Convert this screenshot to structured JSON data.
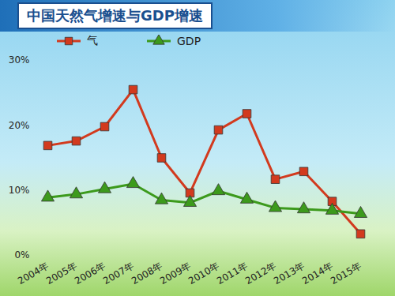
{
  "chart_data": {
    "type": "line",
    "title": "中国天然气增速与GDP增速",
    "categories": [
      "2004年",
      "2005年",
      "2006年",
      "2007年",
      "2008年",
      "2009年",
      "2010年",
      "2011年",
      "2012年",
      "2013年",
      "2014年",
      "2015年"
    ],
    "series": [
      {
        "name": "气",
        "color": "#d23a1e",
        "marker": "square",
        "values": [
          16.9,
          17.6,
          19.8,
          25.5,
          15,
          9.6,
          19.3,
          21.8,
          11.7,
          12.9,
          8.3,
          3.3
        ]
      },
      {
        "name": "GDP",
        "color": "#3c9a1c",
        "marker": "triangle",
        "values": [
          8.9,
          9.4,
          10.2,
          11,
          8.5,
          8.1,
          9.9,
          8.6,
          7.3,
          7.1,
          6.9,
          6.4
        ]
      }
    ],
    "ylim": [
      0,
      30
    ],
    "yticks": [
      {
        "value": 0,
        "label": "0%"
      },
      {
        "value": 10,
        "label": "10%"
      },
      {
        "value": 20,
        "label": "20%"
      },
      {
        "value": 30,
        "label": "30%"
      }
    ],
    "grid": false,
    "legend": "top"
  }
}
